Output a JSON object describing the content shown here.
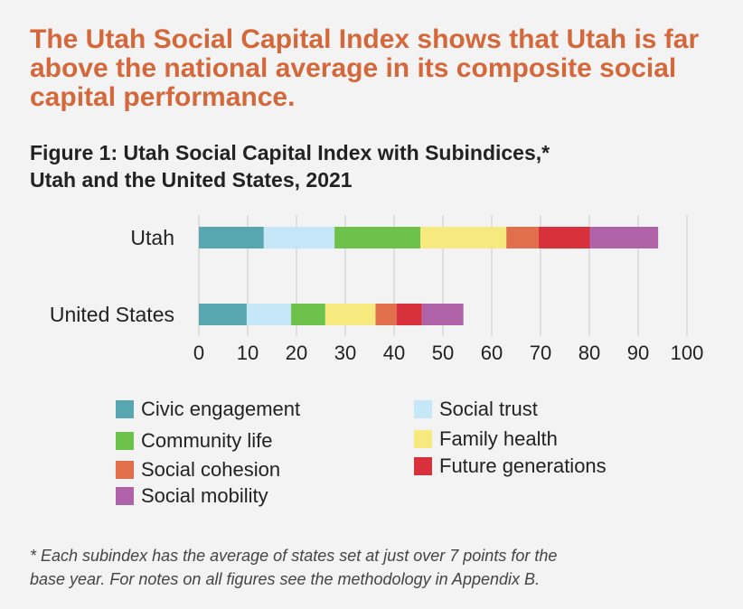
{
  "headline": "The Utah Social Capital Index shows that Utah is far above the national average in its composite social capital performance.",
  "figure_title_line1": "Figure 1: Utah Social Capital Index with Subindices,*",
  "figure_title_line2": "Utah and the United States, 2021",
  "footnote_line1": "* Each subindex has the average of states set at just over 7 points for the",
  "footnote_line2": "base year. For notes on all figures see the methodology in Appendix B.",
  "chart_data": {
    "type": "bar",
    "orientation": "horizontal",
    "stacked": true,
    "title": "Figure 1: Utah Social Capital Index with Subindices,* Utah and the United States, 2021",
    "categories": [
      "Utah",
      "United States"
    ],
    "xlim": [
      0,
      100
    ],
    "xticks": [
      "0",
      "10",
      "20",
      "30",
      "40",
      "50",
      "60",
      "70",
      "80",
      "90",
      "100"
    ],
    "grid": true,
    "legend_position": "bottom",
    "series": [
      {
        "name": "Civic engagement",
        "color": "#58a6b0",
        "values": [
          13.3,
          9.8
        ]
      },
      {
        "name": "Social trust",
        "color": "#c6e7f7",
        "values": [
          14.5,
          9.1
        ]
      },
      {
        "name": "Community life",
        "color": "#6cc24a",
        "values": [
          17.6,
          7.0
        ]
      },
      {
        "name": "Family health",
        "color": "#f6e97e",
        "values": [
          17.6,
          10.3
        ]
      },
      {
        "name": "Social cohesion",
        "color": "#e26f4c",
        "values": [
          6.6,
          4.3
        ]
      },
      {
        "name": "Future generations",
        "color": "#d9313c",
        "values": [
          10.5,
          5.2
        ]
      },
      {
        "name": "Social mobility",
        "color": "#b062a8",
        "values": [
          14.0,
          8.5
        ]
      }
    ]
  }
}
